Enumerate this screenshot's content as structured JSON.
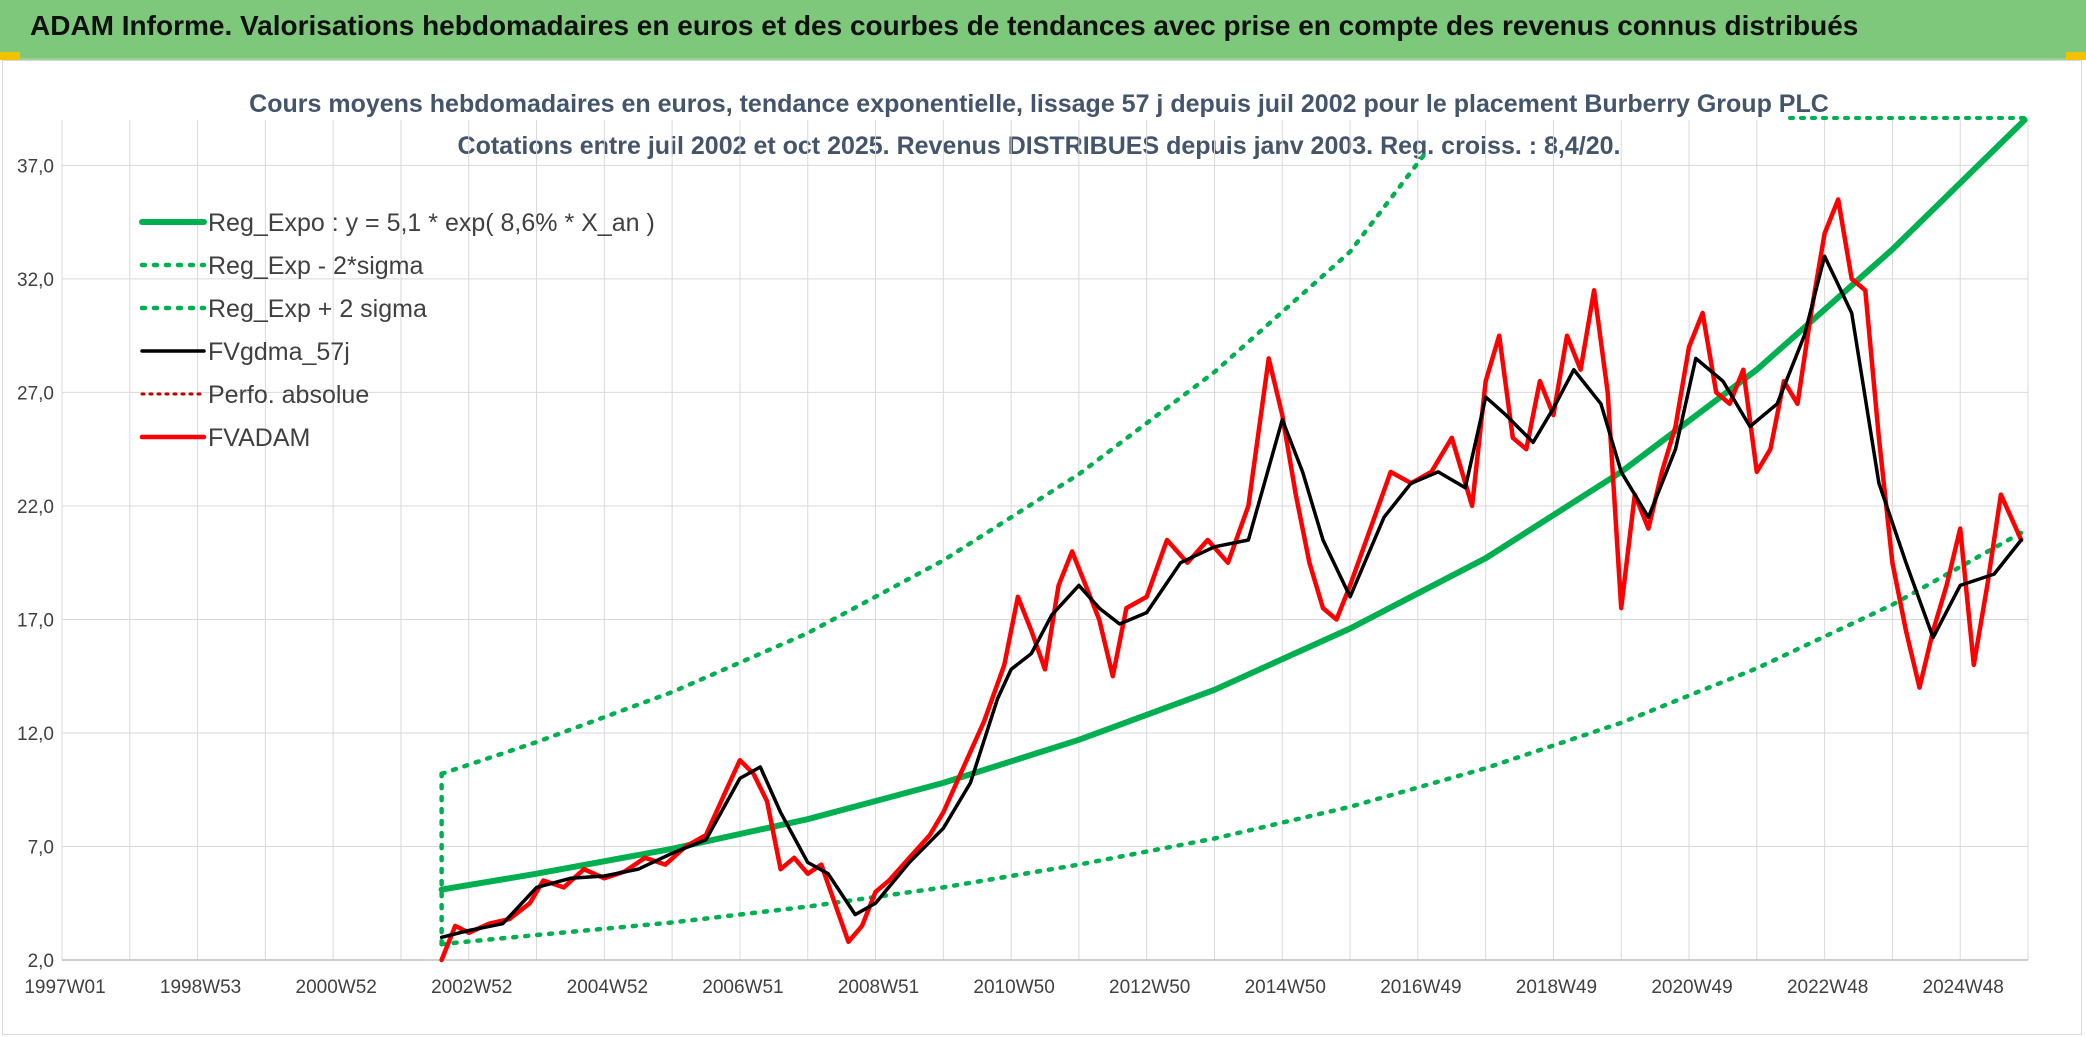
{
  "banner": {
    "title": "ADAM Informe. Valorisations hebdomadaires en euros et des courbes de tendances avec prise en compte des revenus connus distribués"
  },
  "colors": {
    "banner_bg": "#7ec87c",
    "trend_green": "#00b050",
    "fv_black": "#000000",
    "fvadam_red": "#ff0000",
    "accent_yellow": "#f2c200"
  },
  "chart_data": {
    "type": "line",
    "title": "Cours moyens hebdomadaires en euros, tendance exponentielle, lissage 57 j depuis juil 2002 pour le placement Burberry Group PLC",
    "subtitle": "Cotations entre juil 2002 et oct 2025. Revenus DISTRIBUES depuis janv 2003. Reg. croiss. : 8,4/20.",
    "xlabel": "",
    "ylabel": "",
    "x_range": [
      1997.0,
      2026.0
    ],
    "ylim": [
      2.0,
      39.0
    ],
    "y_ticks": [
      "2,0",
      "7,0",
      "12,0",
      "17,0",
      "22,0",
      "27,0",
      "32,0",
      "37,0"
    ],
    "y_tick_values": [
      2,
      7,
      12,
      17,
      22,
      27,
      32,
      37
    ],
    "x_ticks": [
      "1997W01",
      "1998W53",
      "2000W52",
      "2002W52",
      "2004W52",
      "2006W51",
      "2008W51",
      "2010W50",
      "2012W50",
      "2014W50",
      "2016W49",
      "2018W49",
      "2020W49",
      "2022W48",
      "2024W48"
    ],
    "x_tick_values": [
      1997.0,
      1999.0,
      2001.0,
      2003.0,
      2005.0,
      2007.0,
      2009.0,
      2011.0,
      2013.0,
      2015.0,
      2017.0,
      2019.0,
      2021.0,
      2023.0,
      2025.0
    ],
    "grid": true,
    "legend_position": "top-left",
    "series": [
      {
        "name": "Reg_Expo : y = 5,1 * exp( 8,6% *  X_an )",
        "style": "solid",
        "color": "#00b050",
        "x": [
          2002.6,
          2004,
          2006,
          2008,
          2010,
          2012,
          2014,
          2016,
          2018,
          2020,
          2022,
          2024,
          2025.95
        ],
        "y": [
          5.1,
          5.8,
          6.9,
          8.2,
          9.8,
          11.7,
          13.9,
          16.6,
          19.7,
          23.5,
          28.0,
          33.3,
          39.5
        ]
      },
      {
        "name": "Reg_Exp - 2*sigma",
        "style": "dotted",
        "color": "#00b050",
        "x": [
          2002.6,
          2004,
          2006,
          2008,
          2010,
          2012,
          2014,
          2016,
          2018,
          2020,
          2022,
          2024,
          2025.95
        ],
        "y": [
          2.7,
          3.1,
          3.65,
          4.35,
          5.2,
          6.2,
          7.35,
          8.75,
          10.45,
          12.45,
          14.85,
          17.65,
          20.9
        ]
      },
      {
        "name": "Reg_Exp + 2 sigma",
        "style": "dotted",
        "color": "#00b050",
        "x": [
          2002.6,
          2004,
          2006,
          2008,
          2010,
          2012,
          2014,
          2016,
          2017.1
        ],
        "y": [
          10.2,
          11.6,
          13.8,
          16.4,
          19.6,
          23.4,
          27.9,
          33.2,
          37.5
        ]
      },
      {
        "name": "FVgdma_57j",
        "style": "solid",
        "color": "#000000",
        "x": [
          2002.6,
          2003.0,
          2003.5,
          2004.0,
          2004.5,
          2005.0,
          2005.5,
          2006.0,
          2006.5,
          2007.0,
          2007.3,
          2007.6,
          2008.0,
          2008.3,
          2008.7,
          2009.0,
          2009.5,
          2010.0,
          2010.4,
          2010.8,
          2011.0,
          2011.3,
          2011.6,
          2012.0,
          2012.3,
          2012.6,
          2013.0,
          2013.5,
          2014.0,
          2014.5,
          2015.0,
          2015.3,
          2015.6,
          2016.0,
          2016.5,
          2016.9,
          2017.3,
          2017.7,
          2018.0,
          2018.3,
          2018.7,
          2019.0,
          2019.3,
          2019.7,
          2020.0,
          2020.4,
          2020.8,
          2021.1,
          2021.5,
          2021.9,
          2022.3,
          2022.7,
          2023.0,
          2023.4,
          2023.8,
          2024.2,
          2024.6,
          2025.0,
          2025.5,
          2025.9
        ],
        "y": [
          3.0,
          3.3,
          3.6,
          5.2,
          5.6,
          5.7,
          6.0,
          6.7,
          7.3,
          10.0,
          10.5,
          8.5,
          6.3,
          5.8,
          4.0,
          4.5,
          6.3,
          7.8,
          9.8,
          13.5,
          14.8,
          15.5,
          17.2,
          18.5,
          17.5,
          16.8,
          17.3,
          19.5,
          20.2,
          20.5,
          25.8,
          23.5,
          20.5,
          18.0,
          21.5,
          23.0,
          23.5,
          22.8,
          26.8,
          26.0,
          24.8,
          26.3,
          28.0,
          26.5,
          23.5,
          21.5,
          24.5,
          28.5,
          27.5,
          25.5,
          26.5,
          29.5,
          33.0,
          30.5,
          23.0,
          19.5,
          16.2,
          18.5,
          19.0,
          20.5
        ]
      },
      {
        "name": "Perfo. absolue",
        "style": "dotted",
        "color": "#c00000",
        "x": [],
        "y": []
      },
      {
        "name": "FVADAM",
        "style": "solid",
        "color": "#ff0000",
        "x": [
          2002.6,
          2002.8,
          2003.0,
          2003.3,
          2003.6,
          2003.9,
          2004.1,
          2004.4,
          2004.7,
          2005.0,
          2005.3,
          2005.6,
          2005.9,
          2006.2,
          2006.5,
          2006.8,
          2007.0,
          2007.2,
          2007.4,
          2007.6,
          2007.8,
          2008.0,
          2008.2,
          2008.4,
          2008.6,
          2008.8,
          2009.0,
          2009.2,
          2009.5,
          2009.8,
          2010.0,
          2010.3,
          2010.6,
          2010.9,
          2011.1,
          2011.3,
          2011.5,
          2011.7,
          2011.9,
          2012.1,
          2012.3,
          2012.5,
          2012.7,
          2013.0,
          2013.3,
          2013.6,
          2013.9,
          2014.2,
          2014.5,
          2014.8,
          2015.0,
          2015.2,
          2015.4,
          2015.6,
          2015.8,
          2016.0,
          2016.3,
          2016.6,
          2016.9,
          2017.2,
          2017.5,
          2017.8,
          2018.0,
          2018.2,
          2018.4,
          2018.6,
          2018.8,
          2019.0,
          2019.2,
          2019.4,
          2019.6,
          2019.8,
          2020.0,
          2020.2,
          2020.4,
          2020.6,
          2020.8,
          2021.0,
          2021.2,
          2021.4,
          2021.6,
          2021.8,
          2022.0,
          2022.2,
          2022.4,
          2022.6,
          2022.8,
          2023.0,
          2023.2,
          2023.4,
          2023.6,
          2023.8,
          2024.0,
          2024.2,
          2024.4,
          2024.6,
          2024.8,
          2025.0,
          2025.2,
          2025.4,
          2025.6,
          2025.9
        ],
        "y": [
          2.0,
          3.5,
          3.2,
          3.6,
          3.8,
          4.5,
          5.5,
          5.2,
          6.0,
          5.6,
          5.9,
          6.5,
          6.2,
          7.0,
          7.5,
          9.5,
          10.8,
          10.2,
          9.0,
          6.0,
          6.5,
          5.8,
          6.2,
          4.5,
          2.8,
          3.5,
          5.0,
          5.5,
          6.5,
          7.5,
          8.5,
          10.5,
          12.5,
          15.0,
          18.0,
          16.5,
          14.8,
          18.5,
          20.0,
          18.5,
          17.0,
          14.5,
          17.5,
          18.0,
          20.5,
          19.5,
          20.5,
          19.5,
          22.0,
          28.5,
          26.0,
          22.5,
          19.5,
          17.5,
          17.0,
          18.5,
          21.0,
          23.5,
          23.0,
          23.5,
          25.0,
          22.0,
          27.5,
          29.5,
          25.0,
          24.5,
          27.5,
          26.0,
          29.5,
          28.0,
          31.5,
          27.0,
          17.5,
          22.5,
          21.0,
          23.5,
          25.5,
          29.0,
          30.5,
          27.0,
          26.5,
          28.0,
          23.5,
          24.5,
          27.5,
          26.5,
          30.5,
          34.0,
          35.5,
          32.0,
          31.5,
          25.0,
          19.5,
          16.5,
          14.0,
          16.5,
          18.5,
          21.0,
          15.0,
          18.5,
          22.5,
          20.5
        ]
      }
    ]
  }
}
